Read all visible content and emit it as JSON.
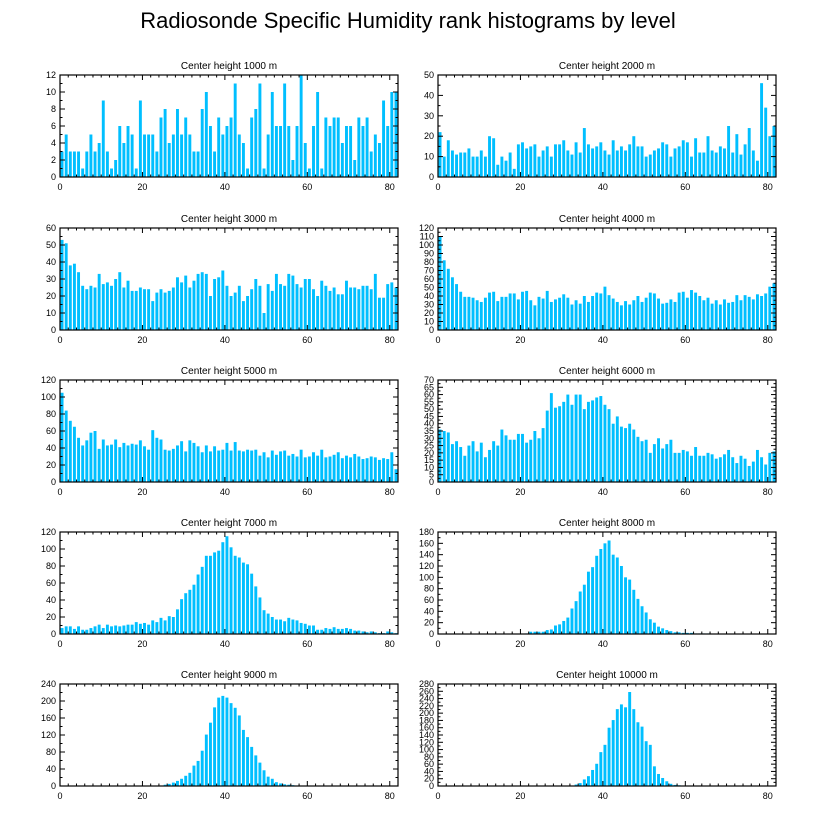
{
  "figure_title": "Radiosonde Specific Humidity rank histograms by level",
  "colors": {
    "bar": "#00BFFF",
    "axis": "#000000"
  },
  "chart_data": [
    {
      "type": "bar",
      "title": "Center height 1000 m",
      "xlim": [
        0,
        82
      ],
      "ylim": [
        0,
        12
      ],
      "xticks": [
        0,
        20,
        40,
        60,
        80
      ],
      "yticks": [
        0,
        2,
        4,
        6,
        8,
        10,
        12
      ],
      "values": [
        3,
        5,
        3,
        3,
        3,
        1,
        3,
        5,
        3,
        4,
        9,
        3,
        1,
        2,
        6,
        4,
        6,
        5,
        1,
        9,
        5,
        5,
        5,
        3,
        7,
        8,
        4,
        5,
        8,
        5,
        7,
        5,
        3,
        3,
        8,
        10,
        6,
        3,
        7,
        5,
        6,
        7,
        11,
        5,
        4,
        1,
        7,
        8,
        11,
        1,
        5,
        10,
        6,
        6,
        11,
        6,
        2,
        6,
        12,
        4,
        1,
        6,
        10,
        1,
        7,
        6,
        7,
        7,
        4,
        6,
        6,
        2,
        7,
        6,
        7,
        3,
        5,
        4,
        9,
        6,
        10,
        10
      ]
    },
    {
      "type": "bar",
      "title": "Center height 2000 m",
      "xlim": [
        0,
        82
      ],
      "ylim": [
        0,
        50
      ],
      "xticks": [
        0,
        20,
        40,
        60,
        80
      ],
      "yticks": [
        0,
        10,
        20,
        30,
        40,
        50
      ],
      "values": [
        22,
        10,
        18,
        13,
        11,
        12,
        12,
        14,
        10,
        10,
        13,
        10,
        20,
        19,
        6,
        10,
        8,
        12,
        4,
        16,
        17,
        14,
        15,
        16,
        10,
        13,
        15,
        10,
        16,
        16,
        18,
        13,
        11,
        17,
        12,
        24,
        16,
        14,
        15,
        17,
        13,
        11,
        18,
        13,
        15,
        13,
        16,
        20,
        15,
        15,
        10,
        11,
        13,
        14,
        17,
        16,
        10,
        14,
        15,
        18,
        17,
        10,
        19,
        12,
        12,
        20,
        13,
        12,
        15,
        14,
        25,
        12,
        21,
        11,
        16,
        24,
        13,
        8,
        46,
        34,
        20,
        25
      ]
    },
    {
      "type": "bar",
      "title": "Center height 3000 m",
      "xlim": [
        0,
        82
      ],
      "ylim": [
        0,
        60
      ],
      "xticks": [
        0,
        20,
        40,
        60,
        80
      ],
      "yticks": [
        0,
        10,
        20,
        30,
        40,
        50,
        60
      ],
      "values": [
        53,
        51,
        38,
        39,
        34,
        26,
        24,
        26,
        25,
        33,
        27,
        28,
        26,
        30,
        34,
        25,
        29,
        23,
        23,
        25,
        24,
        24,
        17,
        22,
        24,
        22,
        23,
        25,
        31,
        28,
        32,
        25,
        29,
        33,
        34,
        33,
        20,
        30,
        31,
        35,
        26,
        20,
        22,
        26,
        17,
        20,
        24,
        30,
        26,
        10,
        27,
        23,
        33,
        27,
        26,
        33,
        32,
        27,
        25,
        30,
        30,
        24,
        20,
        29,
        26,
        23,
        25,
        21,
        21,
        29,
        25,
        25,
        24,
        26,
        26,
        24,
        33,
        19,
        19,
        27,
        28,
        25
      ]
    },
    {
      "type": "bar",
      "title": "Center height 4000 m",
      "xlim": [
        0,
        82
      ],
      "ylim": [
        0,
        120
      ],
      "xticks": [
        0,
        20,
        40,
        60,
        80
      ],
      "yticks": [
        0,
        10,
        20,
        30,
        40,
        50,
        60,
        70,
        80,
        90,
        100,
        110,
        120
      ],
      "values": [
        110,
        82,
        72,
        62,
        54,
        45,
        39,
        39,
        38,
        35,
        33,
        38,
        44,
        45,
        34,
        39,
        39,
        43,
        43,
        36,
        45,
        46,
        35,
        29,
        39,
        37,
        46,
        33,
        36,
        38,
        42,
        38,
        30,
        35,
        31,
        40,
        33,
        40,
        44,
        43,
        51,
        41,
        37,
        33,
        29,
        34,
        30,
        35,
        40,
        33,
        38,
        44,
        43,
        37,
        31,
        32,
        36,
        33,
        44,
        45,
        38,
        47,
        44,
        40,
        35,
        38,
        31,
        35,
        30,
        36,
        32,
        33,
        41,
        35,
        41,
        39,
        36,
        42,
        40,
        43,
        51,
        55
      ]
    },
    {
      "type": "bar",
      "title": "Center height 5000 m",
      "xlim": [
        0,
        82
      ],
      "ylim": [
        0,
        120
      ],
      "xticks": [
        0,
        20,
        40,
        60,
        80
      ],
      "yticks": [
        0,
        20,
        40,
        60,
        80,
        100,
        120
      ],
      "values": [
        105,
        84,
        72,
        65,
        52,
        43,
        49,
        58,
        60,
        39,
        50,
        43,
        44,
        50,
        41,
        46,
        43,
        45,
        44,
        49,
        42,
        38,
        61,
        52,
        50,
        38,
        37,
        39,
        43,
        48,
        36,
        49,
        46,
        42,
        35,
        43,
        36,
        42,
        37,
        38,
        46,
        37,
        47,
        37,
        36,
        38,
        37,
        38,
        31,
        35,
        29,
        37,
        32,
        36,
        37,
        31,
        33,
        30,
        38,
        29,
        30,
        35,
        31,
        38,
        29,
        30,
        32,
        35,
        28,
        31,
        29,
        33,
        30,
        27,
        28,
        30,
        29,
        26,
        28,
        27,
        35,
        15
      ]
    },
    {
      "type": "bar",
      "title": "Center height 6000 m",
      "xlim": [
        0,
        82
      ],
      "ylim": [
        0,
        70
      ],
      "xticks": [
        0,
        20,
        40,
        60,
        80
      ],
      "yticks": [
        0,
        5,
        10,
        15,
        20,
        25,
        30,
        35,
        40,
        45,
        50,
        55,
        60,
        65,
        70
      ],
      "values": [
        36,
        35,
        34,
        26,
        28,
        24,
        18,
        25,
        28,
        21,
        27,
        17,
        22,
        28,
        25,
        36,
        32,
        29,
        29,
        33,
        33,
        27,
        29,
        35,
        30,
        37,
        49,
        61,
        51,
        52,
        55,
        60,
        53,
        60,
        60,
        50,
        55,
        56,
        58,
        59,
        53,
        50,
        40,
        45,
        38,
        37,
        40,
        36,
        31,
        28,
        29,
        20,
        26,
        30,
        23,
        26,
        29,
        20,
        20,
        22,
        21,
        18,
        24,
        18,
        18,
        20,
        19,
        16,
        17,
        19,
        22,
        17,
        13,
        18,
        16,
        11,
        14,
        22,
        17,
        12,
        20,
        21
      ]
    },
    {
      "type": "bar",
      "title": "Center height 7000 m",
      "xlim": [
        0,
        82
      ],
      "ylim": [
        0,
        120
      ],
      "xticks": [
        0,
        20,
        40,
        60,
        80
      ],
      "yticks": [
        0,
        20,
        40,
        60,
        80,
        100,
        120
      ],
      "values": [
        7,
        9,
        9,
        6,
        9,
        5,
        5,
        7,
        9,
        11,
        7,
        11,
        9,
        10,
        9,
        10,
        11,
        11,
        14,
        12,
        13,
        11,
        16,
        14,
        19,
        16,
        21,
        20,
        29,
        41,
        48,
        52,
        58,
        70,
        79,
        92,
        92,
        96,
        98,
        108,
        115,
        102,
        92,
        90,
        84,
        82,
        71,
        56,
        43,
        28,
        24,
        20,
        17,
        17,
        15,
        19,
        17,
        16,
        13,
        12,
        10,
        10,
        5,
        5,
        7,
        6,
        8,
        6,
        6,
        7,
        6,
        4,
        4,
        3,
        2,
        3,
        2,
        1,
        1,
        3,
        2,
        1
      ]
    },
    {
      "type": "bar",
      "title": "Center height 8000 m",
      "xlim": [
        0,
        82
      ],
      "ylim": [
        0,
        180
      ],
      "xticks": [
        0,
        20,
        40,
        60,
        80
      ],
      "yticks": [
        0,
        20,
        40,
        60,
        80,
        100,
        120,
        140,
        160,
        180
      ],
      "values": [
        0,
        0,
        0,
        0,
        0,
        0,
        0,
        0,
        0,
        0,
        0,
        0,
        0,
        0,
        0,
        0,
        0,
        0,
        0,
        0,
        0,
        1,
        4,
        4,
        4,
        4,
        7,
        8,
        15,
        17,
        23,
        29,
        45,
        58,
        75,
        87,
        110,
        118,
        138,
        150,
        160,
        165,
        140,
        135,
        120,
        100,
        96,
        78,
        62,
        49,
        38,
        26,
        20,
        13,
        10,
        7,
        5,
        3,
        3,
        2,
        2,
        2,
        1,
        1,
        1,
        1,
        0,
        0,
        0,
        0,
        0,
        0,
        0,
        0,
        0,
        0,
        0,
        0,
        0,
        0,
        0,
        0
      ]
    },
    {
      "type": "bar",
      "title": "Center height 9000 m",
      "xlim": [
        0,
        82
      ],
      "ylim": [
        0,
        240
      ],
      "xticks": [
        0,
        20,
        40,
        60,
        80
      ],
      "yticks": [
        0,
        40,
        80,
        120,
        160,
        200,
        240
      ],
      "values": [
        0,
        0,
        0,
        0,
        0,
        0,
        0,
        0,
        0,
        0,
        0,
        0,
        0,
        0,
        0,
        0,
        0,
        0,
        0,
        0,
        0,
        0,
        0,
        0,
        1,
        3,
        5,
        8,
        12,
        17,
        24,
        31,
        48,
        59,
        83,
        121,
        149,
        185,
        208,
        212,
        208,
        195,
        184,
        166,
        132,
        115,
        92,
        72,
        55,
        37,
        22,
        17,
        9,
        6,
        4,
        3,
        2,
        1,
        1,
        0,
        0,
        0,
        0,
        0,
        0,
        0,
        0,
        0,
        0,
        0,
        0,
        0,
        0,
        0,
        0,
        0,
        0,
        0,
        0,
        0,
        0,
        0
      ]
    },
    {
      "type": "bar",
      "title": "Center height 10000 m",
      "xlim": [
        0,
        82
      ],
      "ylim": [
        0,
        280
      ],
      "xticks": [
        0,
        20,
        40,
        60,
        80
      ],
      "yticks": [
        0,
        20,
        40,
        60,
        80,
        100,
        120,
        140,
        160,
        180,
        200,
        220,
        240,
        260,
        280
      ],
      "values": [
        0,
        0,
        0,
        0,
        0,
        0,
        0,
        0,
        0,
        0,
        0,
        0,
        0,
        0,
        0,
        0,
        0,
        0,
        0,
        0,
        0,
        0,
        0,
        0,
        0,
        0,
        0,
        0,
        0,
        0,
        0,
        0,
        1,
        4,
        8,
        18,
        27,
        44,
        61,
        93,
        113,
        160,
        181,
        211,
        224,
        216,
        258,
        211,
        175,
        163,
        123,
        113,
        54,
        33,
        22,
        13,
        6,
        3,
        2,
        1,
        1,
        0,
        0,
        0,
        0,
        0,
        0,
        0,
        0,
        0,
        0,
        0,
        0,
        0,
        0,
        0,
        0,
        0,
        0,
        0,
        0,
        0
      ]
    }
  ]
}
